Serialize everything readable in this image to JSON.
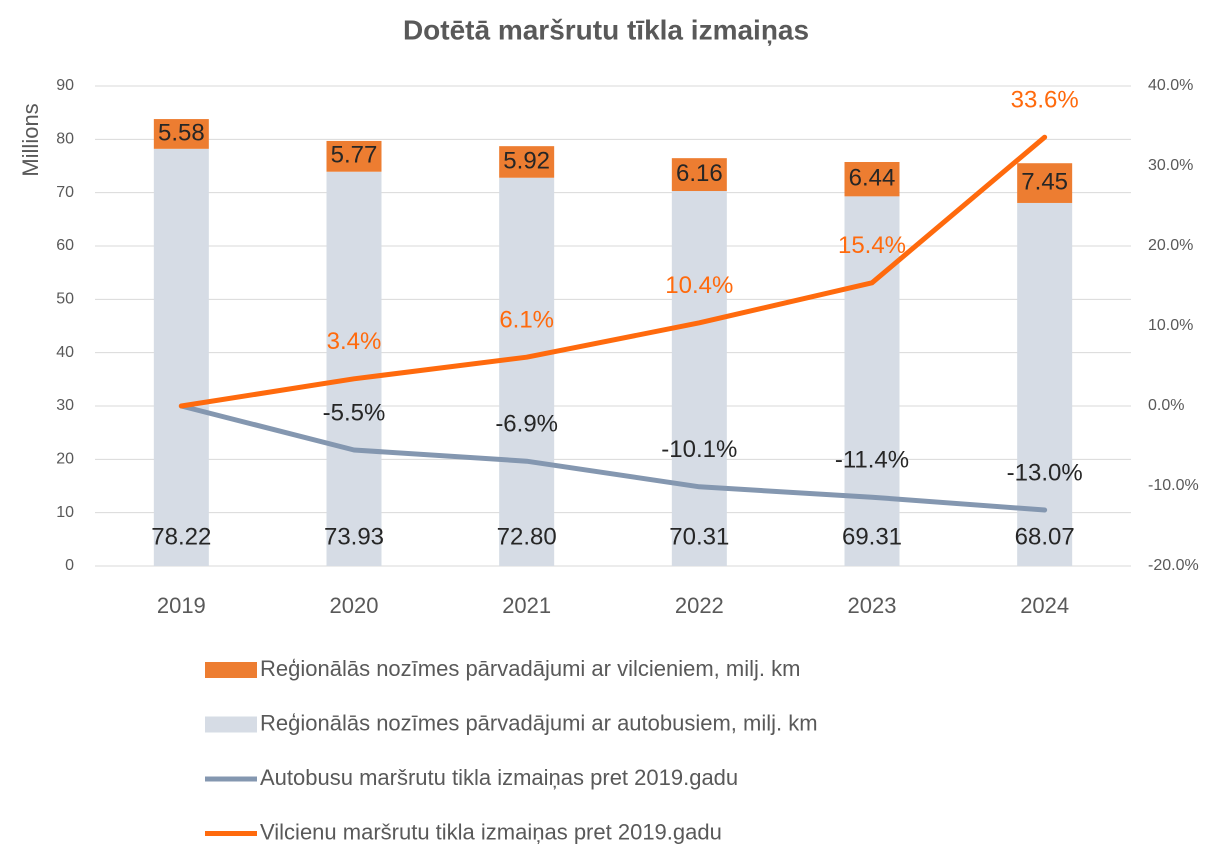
{
  "chart_data": {
    "type": "bar",
    "title": "Dotētā maršrutu tīkla izmaiņas",
    "y_label": "Millions",
    "categories": [
      "2019",
      "2020",
      "2021",
      "2022",
      "2023",
      "2024"
    ],
    "stacked": true,
    "grid": true,
    "legend": "bottom",
    "ylim": [
      0,
      90
    ],
    "yticks": [
      0,
      10,
      20,
      30,
      40,
      50,
      60,
      70,
      80,
      90
    ],
    "y2lim": [
      -20,
      40
    ],
    "y2ticks": [
      {
        "value": -20,
        "label": "-20.0%"
      },
      {
        "value": -10,
        "label": "-10.0%"
      },
      {
        "value": 0,
        "label": "0.0%"
      },
      {
        "value": 10,
        "label": "10.0%"
      },
      {
        "value": 20,
        "label": "20.0%"
      },
      {
        "value": 30,
        "label": "30.0%"
      },
      {
        "value": 40,
        "label": "40.0%"
      }
    ],
    "series": [
      {
        "name": "Reģionālās nozīmes pārvadājumi ar vilcieniem, milj. km",
        "type": "bar",
        "color": "#ED7D31",
        "values": [
          5.58,
          5.77,
          5.92,
          6.16,
          6.44,
          7.45
        ]
      },
      {
        "name": "Reģionālās nozīmes pārvadājumi ar autobusiem, milj. km",
        "type": "bar",
        "color": "#D6DCE5",
        "values": [
          78.22,
          73.93,
          72.8,
          70.31,
          69.31,
          68.07
        ],
        "value_labels": [
          "78.22",
          "73.93",
          "72.80",
          "70.31",
          "69.31",
          "68.07"
        ]
      },
      {
        "name": "Autobusu maršrutu tikla izmaiņas pret 2019.gadu",
        "type": "line",
        "axis": "y2",
        "color": "#8497B0",
        "values": [
          0,
          -5.5,
          -6.9,
          -10.1,
          -11.4,
          -13.0
        ],
        "value_labels": [
          null,
          "-5.5%",
          "-6.9%",
          "-10.1%",
          "-11.4%",
          "-13.0%"
        ]
      },
      {
        "name": "Vilcienu maršrutu tikla izmaiņas pret 2019.gadu",
        "type": "line",
        "axis": "y2",
        "color": "#FF6A0D",
        "values": [
          0,
          3.4,
          6.1,
          10.4,
          15.4,
          33.6
        ],
        "value_labels": [
          null,
          "3.4%",
          "6.1%",
          "10.4%",
          "15.4%",
          "33.6%"
        ]
      }
    ]
  }
}
